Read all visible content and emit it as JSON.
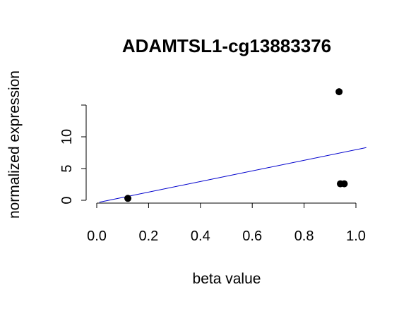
{
  "chart_data": {
    "type": "scatter",
    "title": "ADAMTSL1-cg13883376",
    "xlabel": "beta value",
    "ylabel": "normalized expression",
    "xlim": [
      0.0,
      1.0
    ],
    "ylim": [
      0,
      15
    ],
    "x_ticks": [
      "0.0",
      "0.2",
      "0.4",
      "0.6",
      "0.8",
      "1.0"
    ],
    "y_ticks": [
      "0",
      "5",
      "10"
    ],
    "grid": false,
    "points": [
      {
        "x": 0.12,
        "y": 0.3
      },
      {
        "x": 0.935,
        "y": 17.1
      },
      {
        "x": 0.94,
        "y": 2.6
      },
      {
        "x": 0.955,
        "y": 2.6
      }
    ],
    "fit_line": {
      "x": [
        0.01,
        1.04
      ],
      "y": [
        -0.3,
        8.3
      ]
    },
    "colors": {
      "points": "#000000",
      "fit_line": "#0000cd"
    }
  }
}
